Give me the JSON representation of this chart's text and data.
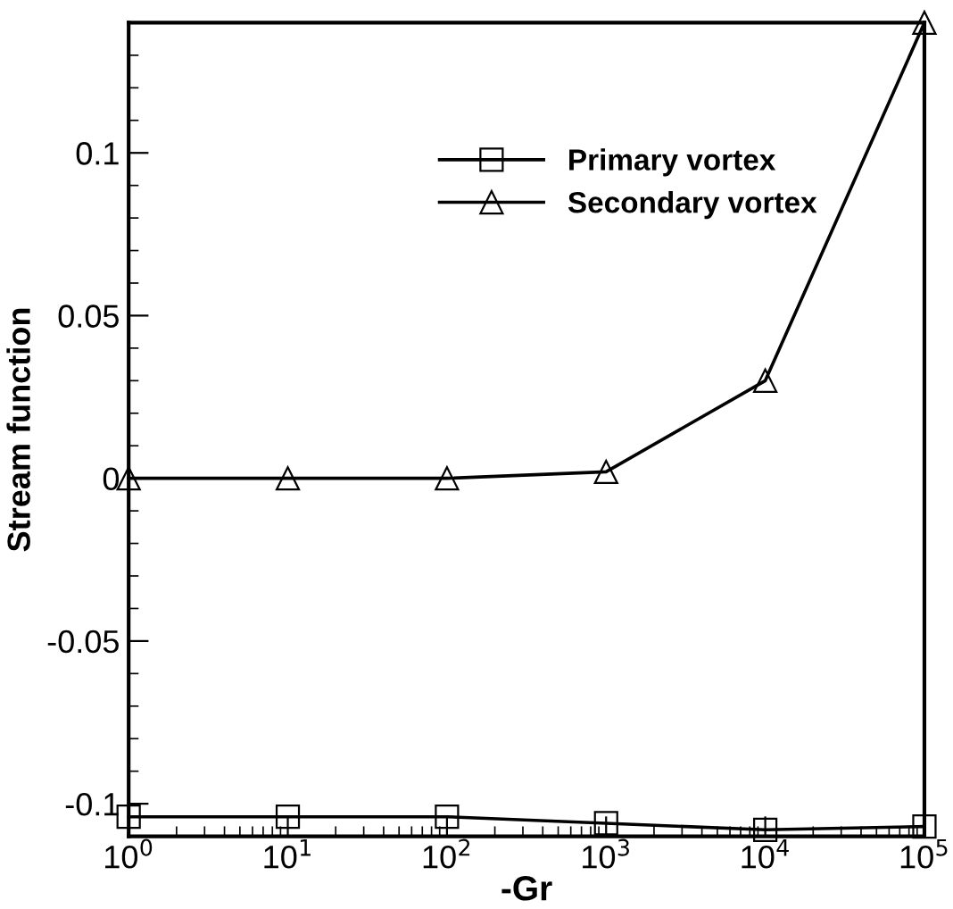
{
  "chart_data": {
    "type": "line",
    "xlabel": "-Gr",
    "ylabel": "Stream function",
    "log": "x",
    "x": [
      1,
      10,
      100,
      1000,
      10000,
      100000
    ],
    "series": [
      {
        "name": "Primary vortex",
        "color": "#000000",
        "marker": "square",
        "values": [
          -0.104,
          -0.104,
          -0.104,
          -0.106,
          -0.108,
          -0.107
        ]
      },
      {
        "name": "Secondary vortex",
        "color": "#000000",
        "marker": "triangle",
        "values": [
          0,
          0,
          0,
          0.002,
          0.03,
          0.14
        ]
      }
    ],
    "xlim": [
      1,
      100000
    ],
    "xticks": [
      {
        "value": 1,
        "label": "10$^{0}$"
      },
      {
        "value": 10,
        "label": "10$^{1}$"
      },
      {
        "value": 100,
        "label": "10$^{2}$"
      },
      {
        "value": 1000,
        "label": "10$^{3}$"
      },
      {
        "value": 10000,
        "label": "10$^{4}$"
      },
      {
        "value": 100000,
        "label": "10$^{5}$"
      }
    ],
    "ylim": [
      -0.11,
      0.14
    ],
    "yticks": [
      -0.1,
      -0.05,
      0,
      0.05,
      0.1
    ],
    "legend": "top right",
    "grid": false,
    "line_style": "solid"
  }
}
